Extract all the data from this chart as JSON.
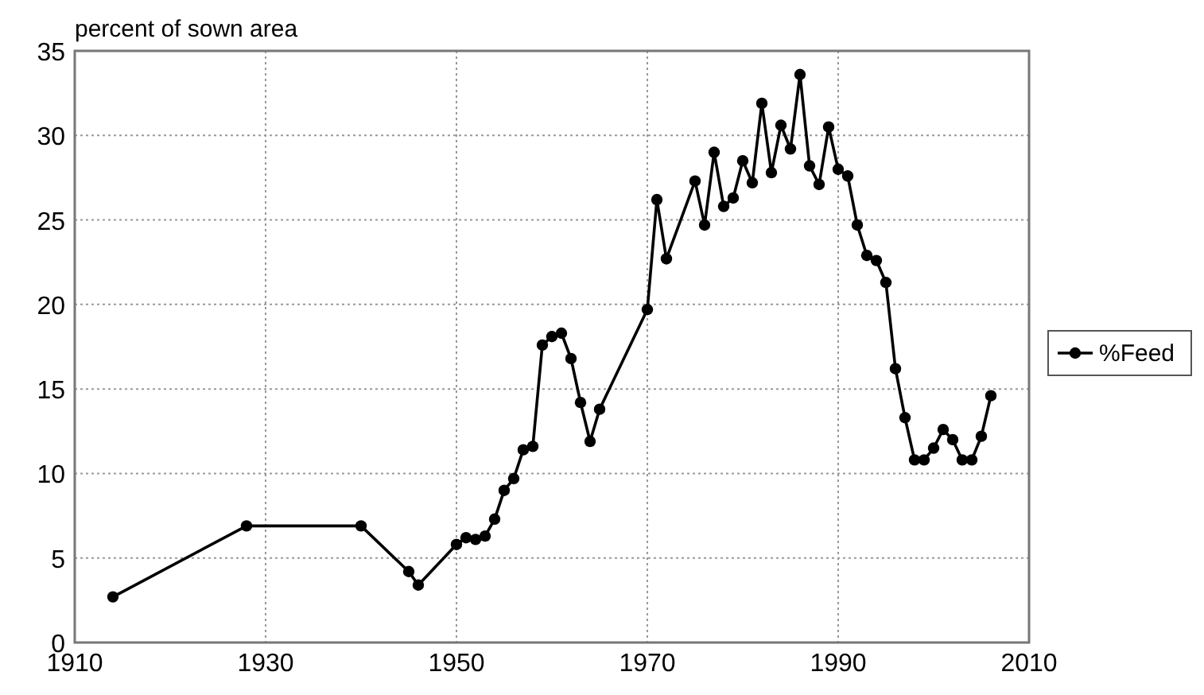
{
  "chart_data": {
    "type": "line",
    "ylabel": "percent of sown area",
    "x": [
      1914,
      1928,
      1940,
      1945,
      1946,
      1950,
      1951,
      1952,
      1953,
      1954,
      1955,
      1956,
      1957,
      1958,
      1959,
      1960,
      1961,
      1962,
      1963,
      1964,
      1965,
      1970,
      1971,
      1972,
      1975,
      1976,
      1977,
      1978,
      1979,
      1980,
      1981,
      1982,
      1983,
      1984,
      1985,
      1986,
      1987,
      1988,
      1989,
      1990,
      1991,
      1992,
      1993,
      1994,
      1995,
      1996,
      1997,
      1998,
      1999,
      2000,
      2001,
      2002,
      2003,
      2004,
      2005,
      2006
    ],
    "series": [
      {
        "name": "%Feed",
        "color": "#000000",
        "values": [
          2.7,
          6.9,
          6.9,
          4.2,
          3.4,
          5.8,
          6.2,
          6.1,
          6.3,
          7.3,
          9.0,
          9.7,
          11.4,
          11.6,
          17.6,
          18.1,
          18.3,
          16.8,
          14.2,
          11.9,
          13.8,
          19.7,
          26.2,
          22.7,
          27.3,
          24.7,
          29.0,
          25.8,
          26.3,
          28.5,
          27.2,
          31.9,
          27.8,
          30.6,
          29.2,
          33.6,
          28.2,
          27.1,
          30.5,
          28.0,
          27.6,
          24.7,
          22.9,
          22.6,
          21.3,
          16.2,
          13.3,
          10.8,
          10.8,
          11.5,
          12.6,
          12.0,
          10.8,
          10.8,
          12.2,
          14.6
        ]
      }
    ],
    "xlim": [
      1910,
      2010
    ],
    "xticks": [
      1910,
      1930,
      1950,
      1970,
      1990,
      2010
    ],
    "ylim": [
      0,
      35
    ],
    "yticks": [
      0,
      5,
      10,
      15,
      20,
      25,
      30,
      35
    ],
    "grid": true,
    "legend": "right",
    "marker": "circle",
    "line_style": "solid"
  }
}
